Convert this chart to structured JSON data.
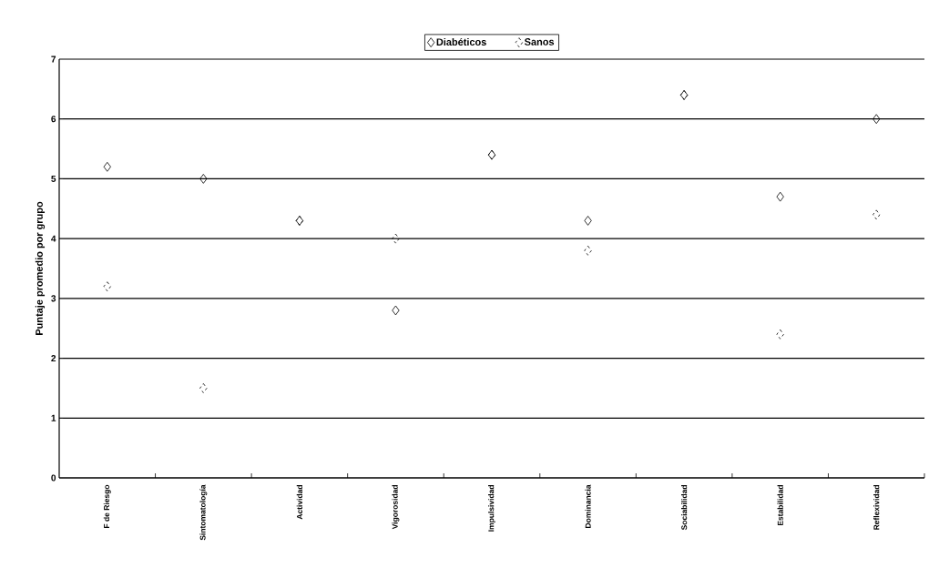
{
  "chart_data": {
    "type": "scatter",
    "ylabel": "Puntaje promedio por grupo",
    "categories": [
      "F de Riesgo",
      "Sintomatología",
      "Actividad",
      "Vigorosidad",
      "Impulsividad",
      "Dominancia",
      "Sociabilidad",
      "Estabilidad",
      "Reflexividad"
    ],
    "series": [
      {
        "name": "Diabéticos",
        "color": "#000000",
        "values": [
          5.2,
          5.0,
          4.3,
          2.8,
          5.4,
          4.3,
          6.4,
          4.7,
          6.0
        ]
      },
      {
        "name": "Sanos",
        "color": "#000000",
        "values": [
          3.2,
          1.5,
          4.3,
          4.0,
          5.4,
          3.8,
          6.4,
          2.4,
          4.4
        ]
      }
    ],
    "ylim": [
      0,
      7
    ],
    "yticks": [
      0,
      1,
      2,
      3,
      4,
      5,
      6,
      7
    ],
    "grid": "y",
    "legend": "top",
    "marker": "diamond"
  }
}
